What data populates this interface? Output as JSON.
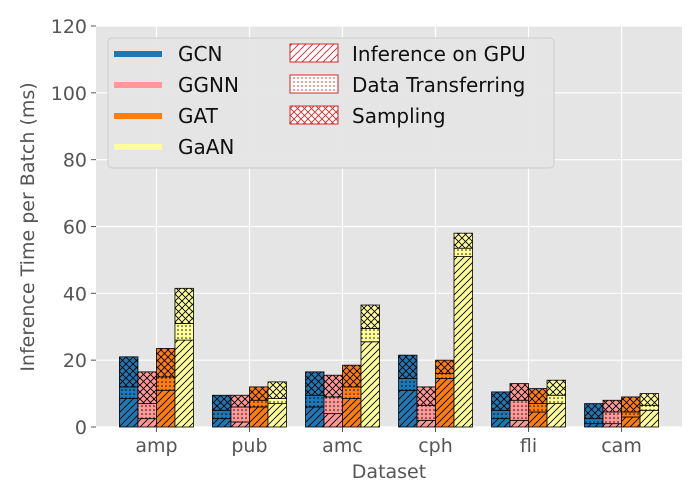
{
  "chart_data": {
    "type": "bar",
    "subtype": "grouped-stacked",
    "title": "",
    "xlabel": "Dataset",
    "ylabel": "Inference Time per Batch (ms)",
    "ylim": [
      0,
      120
    ],
    "yticks": [
      0,
      20,
      40,
      60,
      80,
      100,
      120
    ],
    "grid": true,
    "legend_position": "top-left",
    "categories": [
      "amp",
      "pub",
      "amc",
      "cph",
      "fli",
      "cam"
    ],
    "series": [
      {
        "name": "GCN",
        "color": "#1f77b4",
        "inference": [
          8.5,
          2.5,
          6.0,
          11.0,
          2.5,
          1.0
        ],
        "transfer": [
          3.5,
          2.5,
          3.5,
          3.5,
          2.5,
          1.5
        ],
        "sampling": [
          9.0,
          4.5,
          7.0,
          7.0,
          5.5,
          4.5
        ]
      },
      {
        "name": "GGNN",
        "color": "#ff9896",
        "inference": [
          2.5,
          1.5,
          4.0,
          2.0,
          2.0,
          1.0
        ],
        "transfer": [
          4.5,
          4.5,
          5.0,
          4.5,
          6.0,
          3.5
        ],
        "sampling": [
          9.5,
          3.5,
          6.5,
          5.5,
          5.0,
          3.5
        ]
      },
      {
        "name": "GAT",
        "color": "#ff7f0e",
        "inference": [
          11.0,
          6.0,
          8.5,
          14.5,
          4.5,
          3.0
        ],
        "transfer": [
          4.0,
          2.0,
          3.5,
          1.5,
          2.5,
          1.5
        ],
        "sampling": [
          8.5,
          4.0,
          6.5,
          4.0,
          4.5,
          4.5
        ]
      },
      {
        "name": "GaAN",
        "color": "#ffff99",
        "inference": [
          26.0,
          7.0,
          25.5,
          51.0,
          7.0,
          5.0
        ],
        "transfer": [
          5.0,
          1.5,
          4.0,
          2.5,
          2.5,
          1.5
        ],
        "sampling": [
          10.5,
          5.0,
          7.0,
          4.5,
          4.5,
          3.5
        ]
      }
    ],
    "components": [
      "Inference on GPU",
      "Data Transferring",
      "Sampling"
    ],
    "component_hatch": [
      "diagonal",
      "dots",
      "crosshatch"
    ],
    "component_legend_color": "#d62728"
  }
}
